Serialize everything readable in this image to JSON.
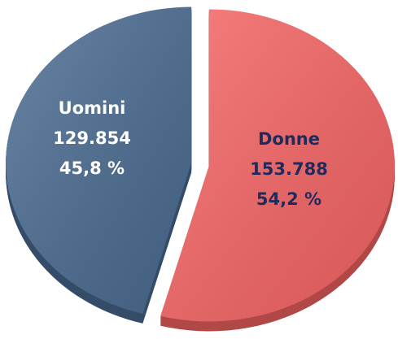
{
  "chart_data": {
    "type": "pie",
    "categories": [
      "Uomini",
      "Donne"
    ],
    "values": [
      129854,
      153788
    ],
    "value_labels": [
      "129.854",
      "153.788"
    ],
    "percent": [
      45.8,
      54.2
    ],
    "percent_labels": [
      "45,8 %",
      "54,2 %"
    ],
    "colors": [
      "#4a6b91",
      "#f66464"
    ],
    "label_colors": [
      "#ffffff",
      "#1f2b5c"
    ]
  }
}
